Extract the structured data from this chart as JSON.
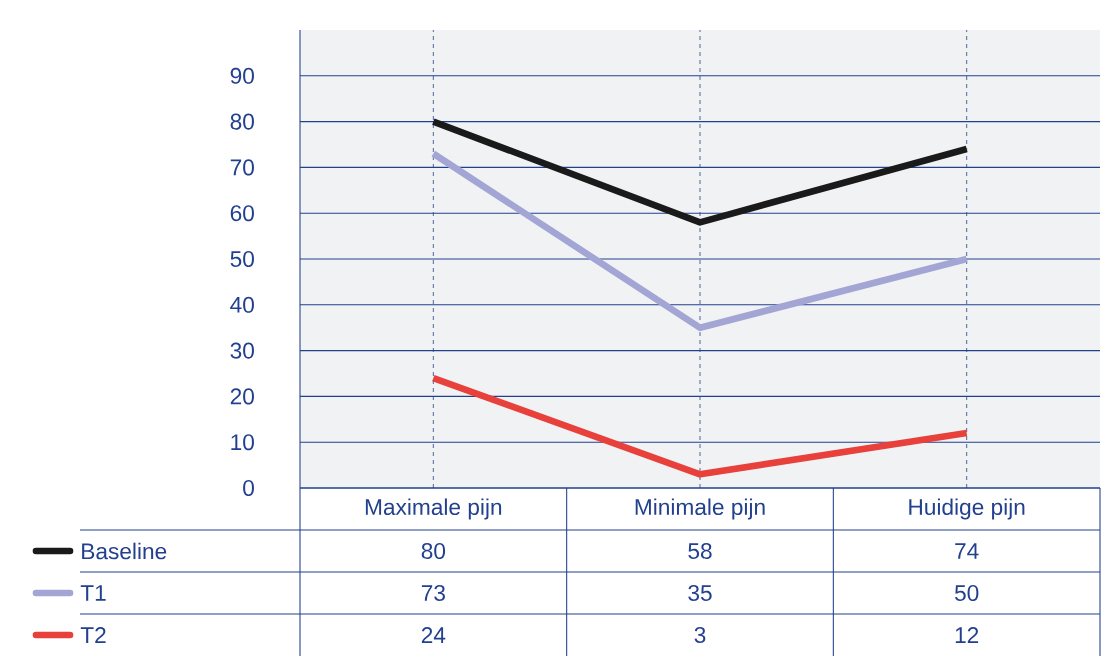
{
  "chart_data": {
    "type": "line",
    "categories": [
      "Maximale pijn",
      "Minimale pijn",
      "Huidige pijn"
    ],
    "series": [
      {
        "name": "Baseline",
        "color": "#1a1a1a",
        "values": [
          80,
          58,
          74
        ]
      },
      {
        "name": "T1",
        "color": "#a3a6d4",
        "values": [
          73,
          35,
          50
        ]
      },
      {
        "name": "T2",
        "color": "#e8403a",
        "values": [
          24,
          3,
          12
        ]
      }
    ],
    "ylim": [
      0,
      100
    ],
    "yticks": [
      0,
      10,
      20,
      30,
      40,
      50,
      60,
      70,
      80,
      90
    ],
    "grid": true,
    "legend": "bottom left",
    "data_labels": true,
    "marker": "none",
    "line_style": "solid"
  }
}
